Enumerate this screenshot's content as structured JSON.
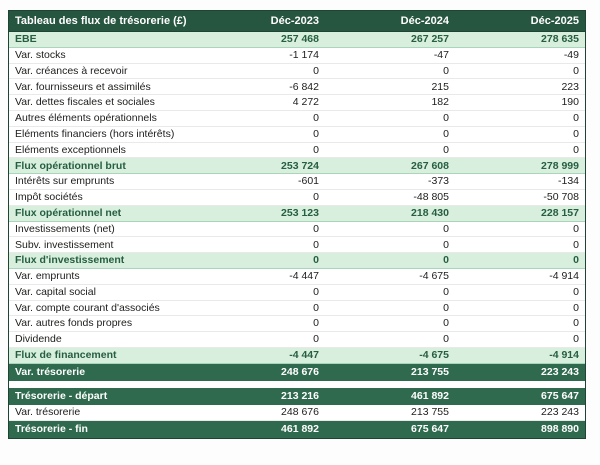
{
  "chart_data": {
    "type": "table",
    "title": "Tableau des flux de trésorerie (£)",
    "columns": [
      "Déc-2023",
      "Déc-2024",
      "Déc-2025"
    ],
    "rows": [
      {
        "label": "EBE",
        "values": [
          "257 468",
          "267 257",
          "278 635"
        ],
        "style": "subtotal"
      },
      {
        "label": "Var. stocks",
        "values": [
          "-1 174",
          "-47",
          "-49"
        ],
        "style": "normal"
      },
      {
        "label": "Var. créances à recevoir",
        "values": [
          "0",
          "0",
          "0"
        ],
        "style": "normal"
      },
      {
        "label": "Var. fournisseurs et assimilés",
        "values": [
          "-6 842",
          "215",
          "223"
        ],
        "style": "normal"
      },
      {
        "label": "Var. dettes fiscales et sociales",
        "values": [
          "4 272",
          "182",
          "190"
        ],
        "style": "normal"
      },
      {
        "label": "Autres éléments opérationnels",
        "values": [
          "0",
          "0",
          "0"
        ],
        "style": "normal"
      },
      {
        "label": "Eléments financiers (hors intérêts)",
        "values": [
          "0",
          "0",
          "0"
        ],
        "style": "normal"
      },
      {
        "label": "Eléments exceptionnels",
        "values": [
          "0",
          "0",
          "0"
        ],
        "style": "normal"
      },
      {
        "label": "Flux opérationnel brut",
        "values": [
          "253 724",
          "267 608",
          "278 999"
        ],
        "style": "subtotal"
      },
      {
        "label": "Intérêts sur emprunts",
        "values": [
          "-601",
          "-373",
          "-134"
        ],
        "style": "normal"
      },
      {
        "label": "Impôt sociétés",
        "values": [
          "0",
          "-48 805",
          "-50 708"
        ],
        "style": "normal"
      },
      {
        "label": "Flux opérationnel net",
        "values": [
          "253 123",
          "218 430",
          "228 157"
        ],
        "style": "subtotal"
      },
      {
        "label": "Investissements (net)",
        "values": [
          "0",
          "0",
          "0"
        ],
        "style": "normal"
      },
      {
        "label": "Subv. investissement",
        "values": [
          "0",
          "0",
          "0"
        ],
        "style": "normal"
      },
      {
        "label": "Flux d'investissement",
        "values": [
          "0",
          "0",
          "0"
        ],
        "style": "subtotal"
      },
      {
        "label": "Var. emprunts",
        "values": [
          "-4 447",
          "-4 675",
          "-4 914"
        ],
        "style": "normal"
      },
      {
        "label": "Var. capital social",
        "values": [
          "0",
          "0",
          "0"
        ],
        "style": "normal"
      },
      {
        "label": "Var. compte courant d'associés",
        "values": [
          "0",
          "0",
          "0"
        ],
        "style": "normal"
      },
      {
        "label": "Var. autres fonds propres",
        "values": [
          "0",
          "0",
          "0"
        ],
        "style": "normal"
      },
      {
        "label": "Dividende",
        "values": [
          "0",
          "0",
          "0"
        ],
        "style": "normal"
      },
      {
        "label": "Flux de financement",
        "values": [
          "-4 447",
          "-4 675",
          "-4 914"
        ],
        "style": "subtotal"
      },
      {
        "label": "Var. trésorerie",
        "values": [
          "248 676",
          "213 755",
          "223 243"
        ],
        "style": "total"
      },
      {
        "label": "",
        "values": [],
        "style": "spacer"
      },
      {
        "label": "Trésorerie - départ",
        "values": [
          "213 216",
          "461 892",
          "675 647"
        ],
        "style": "total"
      },
      {
        "label": "Var. trésorerie",
        "values": [
          "248 676",
          "213 755",
          "223 243"
        ],
        "style": "normal"
      },
      {
        "label": "Trésorerie - fin",
        "values": [
          "461 892",
          "675 647",
          "898 890"
        ],
        "style": "total"
      }
    ],
    "colors": {
      "header_bg": "#265540",
      "header_text": "#ffffff",
      "subtotal_bg": "#d8efde",
      "subtotal_text": "#265e41",
      "total_bg": "#2f6a4e",
      "total_text": "#ffffff",
      "normal_text": "#1d1d1b",
      "outer_border": "#1f4433",
      "grid_line": "#e9e9e9"
    }
  }
}
